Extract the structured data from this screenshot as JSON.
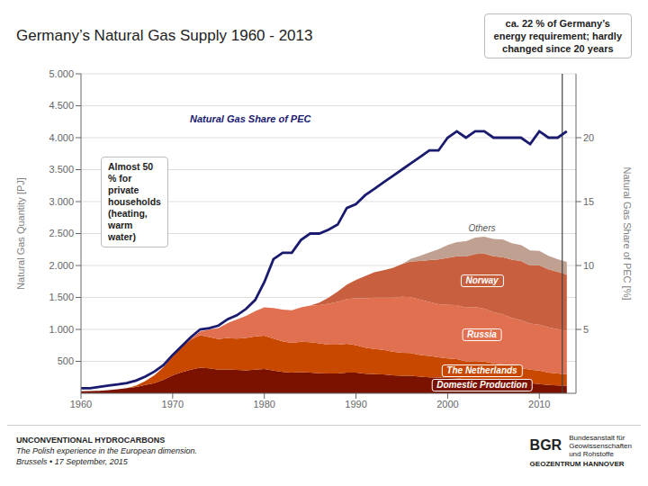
{
  "chart_data": {
    "type": "area",
    "stacked": true,
    "title": "Germany’s Natural Gas Supply 1960 - 2013",
    "ylabel": "Natural Gas Quantity [PJ]",
    "y2label": "Natural Gas Share of PEC [%]",
    "x": [
      1960,
      1961,
      1962,
      1963,
      1964,
      1965,
      1966,
      1967,
      1968,
      1969,
      1970,
      1971,
      1972,
      1973,
      1974,
      1975,
      1976,
      1977,
      1978,
      1979,
      1980,
      1981,
      1982,
      1983,
      1984,
      1985,
      1986,
      1987,
      1988,
      1989,
      1990,
      1991,
      1992,
      1993,
      1994,
      1995,
      1996,
      1997,
      1998,
      1999,
      2000,
      2001,
      2002,
      2003,
      2004,
      2005,
      2006,
      2007,
      2008,
      2009,
      2010,
      2011,
      2012,
      2013
    ],
    "series": [
      {
        "name": "Domestic Production",
        "color": "#7B1200",
        "values": [
          30,
          35,
          40,
          50,
          65,
          80,
          100,
          130,
          160,
          210,
          280,
          330,
          370,
          400,
          390,
          370,
          375,
          365,
          360,
          370,
          380,
          355,
          335,
          325,
          330,
          325,
          315,
          310,
          310,
          325,
          325,
          305,
          300,
          295,
          280,
          275,
          275,
          260,
          250,
          245,
          240,
          235,
          220,
          220,
          215,
          200,
          190,
          180,
          170,
          160,
          145,
          130,
          125,
          120
        ]
      },
      {
        "name": "The Netherlands",
        "color": "#C84800",
        "values": [
          0,
          0,
          0,
          0,
          0,
          0,
          20,
          60,
          120,
          200,
          300,
          400,
          470,
          510,
          490,
          480,
          490,
          490,
          505,
          520,
          520,
          500,
          480,
          465,
          475,
          475,
          465,
          450,
          450,
          450,
          430,
          410,
          395,
          385,
          370,
          360,
          355,
          340,
          335,
          320,
          305,
          300,
          280,
          285,
          280,
          270,
          260,
          240,
          225,
          210,
          210,
          195,
          185,
          175
        ]
      },
      {
        "name": "Russia",
        "color": "#E07050",
        "values": [
          0,
          0,
          0,
          0,
          0,
          0,
          0,
          0,
          0,
          0,
          0,
          0,
          15,
          60,
          115,
          170,
          235,
          300,
          345,
          395,
          445,
          480,
          495,
          510,
          540,
          575,
          600,
          640,
          670,
          700,
          730,
          770,
          800,
          815,
          845,
          875,
          875,
          865,
          845,
          830,
          840,
          845,
          840,
          845,
          830,
          800,
          785,
          760,
          750,
          720,
          720,
          705,
          695,
          685
        ]
      },
      {
        "name": "Norway",
        "color": "#C86040",
        "values": [
          0,
          0,
          0,
          0,
          0,
          0,
          0,
          0,
          0,
          0,
          0,
          0,
          0,
          0,
          0,
          0,
          0,
          0,
          0,
          0,
          0,
          0,
          0,
          0,
          0,
          0,
          40,
          95,
          160,
          225,
          290,
          350,
          400,
          430,
          465,
          510,
          560,
          605,
          655,
          700,
          735,
          765,
          800,
          830,
          860,
          875,
          895,
          910,
          925,
          910,
          930,
          910,
          895,
          880
        ]
      },
      {
        "name": "Others",
        "color": "#C0A090",
        "values": [
          0,
          0,
          0,
          0,
          0,
          0,
          0,
          0,
          0,
          0,
          0,
          0,
          0,
          0,
          0,
          0,
          0,
          0,
          0,
          0,
          0,
          0,
          0,
          0,
          0,
          0,
          0,
          0,
          0,
          0,
          0,
          0,
          0,
          0,
          0,
          0,
          40,
          80,
          120,
          160,
          200,
          220,
          240,
          255,
          265,
          270,
          280,
          260,
          250,
          235,
          225,
          210,
          200,
          195
        ]
      },
      {
        "name": "Natural Gas Share of PEC",
        "type": "line",
        "axis": "y2",
        "color": "#1a1a6e",
        "values": [
          0.4,
          0.4,
          0.5,
          0.6,
          0.7,
          0.8,
          1.0,
          1.3,
          1.7,
          2.2,
          3.0,
          3.7,
          4.4,
          5.0,
          5.1,
          5.3,
          5.8,
          6.1,
          6.6,
          7.3,
          8.7,
          10.5,
          11.0,
          11.0,
          12.0,
          12.5,
          12.5,
          12.8,
          13.2,
          14.5,
          14.8,
          15.5,
          16.0,
          16.5,
          17.0,
          17.5,
          18.0,
          18.5,
          19.0,
          19.0,
          20.0,
          20.5,
          20.0,
          20.5,
          20.5,
          20.0,
          20.0,
          20.0,
          20.0,
          19.5,
          20.5,
          20.0,
          20.0,
          20.5
        ]
      }
    ],
    "xlim": [
      1960,
      2014
    ],
    "xticks": [
      1960,
      1970,
      1980,
      1990,
      2000,
      2010
    ],
    "ylim": [
      0,
      5000
    ],
    "yticks": [
      500,
      {
        "value": 1000,
        "label": "1.000"
      },
      {
        "value": 1500,
        "label": "1.500"
      },
      {
        "value": 2000,
        "label": "2.000"
      },
      {
        "value": 2500,
        "label": "2.500"
      },
      {
        "value": 3000,
        "label": "3.000"
      },
      {
        "value": 3500,
        "label": "3.500"
      },
      {
        "value": 4000,
        "label": "4.000"
      },
      {
        "value": 4500,
        "label": "4.500"
      },
      {
        "value": 5000,
        "label": "5.000"
      }
    ],
    "y2lim": [
      0,
      25
    ],
    "y2ticks": [
      5,
      10,
      15,
      20
    ],
    "grid": true,
    "vlines": [
      2012.5
    ],
    "annotations": [
      "ca. 22 %  of Germany’s\nenergy requirement; hardly\nchanged since 20 years",
      "Almost 50 %  for private\nhouseholds\n(heating, warm water)"
    ],
    "footer": [
      "UNCONVENTIONAL HYDROCARBONS",
      "The Polish experience in the European dimension.",
      "Brussels • 17 September, 2015",
      "BGR",
      "Bundesanstalt für\nGeowissenschaften\nund Rohstoffe",
      "GEOZENTRUM HANNOVER"
    ]
  }
}
